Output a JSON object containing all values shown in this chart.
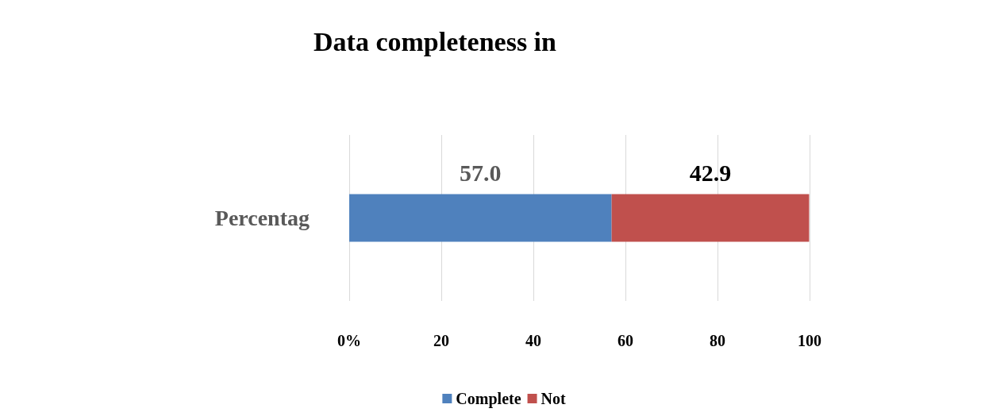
{
  "chart_data": {
    "type": "bar",
    "orientation": "horizontal",
    "stacked": true,
    "title": "Data completeness in",
    "categories": [
      "Percentag"
    ],
    "series": [
      {
        "name": "Complete",
        "color": "#4f81bd",
        "values": [
          57.0
        ],
        "value_labels": [
          "57.0"
        ]
      },
      {
        "name": "Not",
        "color": "#c0504d",
        "values": [
          42.9
        ],
        "value_labels": [
          "42.9"
        ]
      }
    ],
    "xlim": [
      0,
      100
    ],
    "xticks": [
      {
        "value": 0,
        "label": "0%"
      },
      20,
      40,
      60,
      80,
      100
    ],
    "grid": "x",
    "legend": "bottom"
  }
}
